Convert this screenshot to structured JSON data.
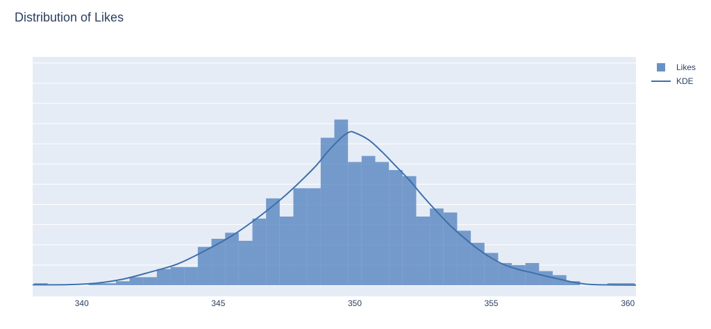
{
  "chart_data": {
    "type": "bar",
    "title": "Distribution of Likes",
    "xlabel": "",
    "ylabel": "",
    "xlim": [
      338.2,
      360.3
    ],
    "ylim": [
      -5.5,
      113
    ],
    "grid": true,
    "legend_position": "top-right",
    "x_ticks": [
      340,
      345,
      350,
      355,
      360
    ],
    "x_tick_labels": [
      "340",
      "345",
      "350",
      "355",
      "360"
    ],
    "y_gridlines": [
      0,
      10,
      20,
      30,
      40,
      50,
      60,
      70,
      80,
      90,
      100,
      110
    ],
    "colors": {
      "bars": "#4e7fbc",
      "kde": "#3d6faa",
      "plot_bg": "#e5ecf6",
      "grid": "#ffffff"
    },
    "series": [
      {
        "name": "Likes",
        "type": "histogram",
        "bin_width": 0.5,
        "bins_start": [
          338.25,
          340.25,
          340.75,
          341.25,
          341.75,
          342.25,
          342.75,
          343.25,
          343.75,
          344.25,
          344.75,
          345.25,
          345.75,
          346.25,
          346.75,
          347.25,
          347.75,
          348.25,
          348.75,
          349.25,
          349.75,
          350.25,
          350.75,
          351.25,
          351.75,
          352.25,
          352.75,
          353.25,
          353.75,
          354.25,
          354.75,
          355.25,
          355.75,
          356.25,
          356.75,
          357.25,
          357.75,
          359.25,
          359.75
        ],
        "values": [
          1,
          1,
          1,
          2,
          4,
          4,
          8,
          9,
          9,
          19,
          23,
          26,
          22,
          33,
          43,
          34,
          48,
          48,
          73,
          82,
          61,
          64,
          61,
          57,
          54,
          34,
          38,
          36,
          27,
          21,
          16,
          11,
          10,
          11,
          7,
          5,
          2,
          1,
          1
        ]
      },
      {
        "name": "KDE",
        "type": "line",
        "x": [
          338.2,
          339.5,
          340.5,
          341.5,
          342.5,
          343.5,
          344.5,
          345.5,
          346.5,
          347.5,
          348.5,
          349.0,
          349.5,
          349.8,
          350.0,
          350.5,
          351.0,
          351.5,
          352.0,
          352.5,
          353.0,
          353.5,
          354.0,
          354.5,
          355.0,
          355.5,
          356.0,
          356.5,
          357.0,
          357.5,
          358.0,
          358.5,
          359.0,
          360.3
        ],
        "y": [
          0.2,
          0.3,
          1,
          3,
          6.5,
          10.5,
          17,
          24.5,
          34,
          45,
          58,
          66,
          73,
          75.8,
          75.5,
          72,
          66,
          59,
          52,
          44,
          36.5,
          29.5,
          23.5,
          18,
          13.5,
          10,
          7.8,
          6.2,
          4.5,
          3,
          1.5,
          0.5,
          0.2,
          0.1
        ]
      }
    ]
  }
}
